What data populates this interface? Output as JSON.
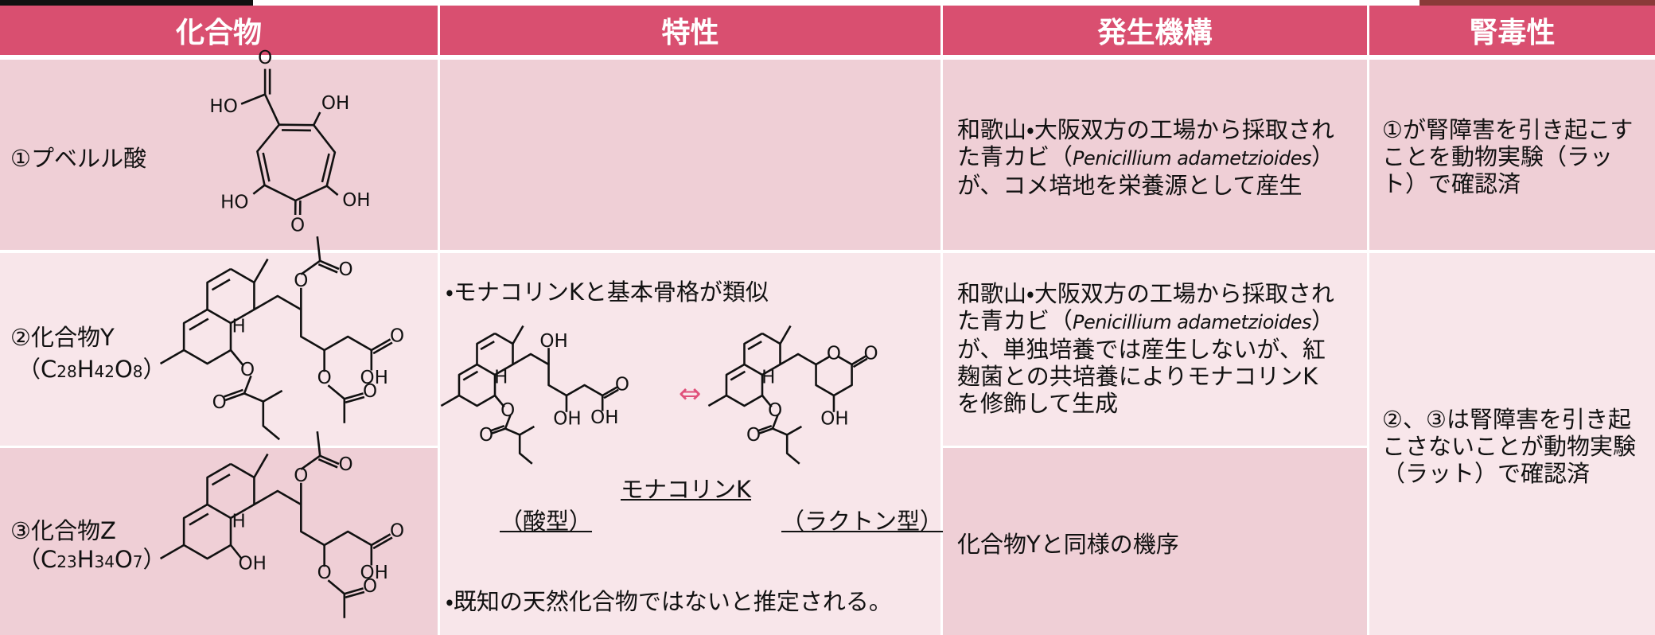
{
  "header": {
    "columns": [
      "化合物",
      "特性",
      "発生機構",
      "腎毒性"
    ]
  },
  "rows": [
    {
      "compound": "①プベルル酸",
      "mechanism": [
        "和歌山・大阪双方の工場から採取された青カビ（",
        "Penicillium adametzioides",
        "）が、コメ培地を栄養源として産生"
      ],
      "toxicity": "①が腎障害を引き起こすことを動物実験（ラット）で確認済"
    },
    {
      "compound": "②化合物Y",
      "formula": [
        "（C",
        "28",
        "H",
        "42",
        "O",
        "8",
        "）"
      ],
      "mechanism": [
        "和歌山・大阪双方の工場から採取された青カビ（",
        "Penicillium adametzioides",
        "）が、単独培養では産生しないが、紅麹菌との共培養によりモナコリンKを修飾して生成"
      ],
      "toxicity": "②、③は腎障害を引き起こさないことが動物実験（ラット）で確認済"
    },
    {
      "compound": "③化合物Z",
      "formula": [
        "（C",
        "23",
        "H",
        "34",
        "O",
        "7",
        "）"
      ],
      "mechanism": [
        "化合物Yと同様の機序"
      ]
    }
  ],
  "properties": {
    "bullet1": "・モナコリンKと基本骨格が類似",
    "arrow": "⇔",
    "caption": "モナコリンK",
    "acid_form": "（酸型）",
    "lactone_form": "（ラクトン型）",
    "bullet2": "・既知の天然化合物ではないと推定される。"
  },
  "structures": {
    "puberulic": [
      "O",
      "HO",
      "OH",
      "OH",
      "HO",
      "O"
    ],
    "compound_y": [
      "O",
      "O",
      "H",
      "O",
      "O",
      "O",
      "OH",
      "O",
      "O"
    ],
    "compound_z": [
      "O",
      "O",
      "H",
      "OH",
      "O",
      "OH",
      "O",
      "O"
    ],
    "monacolin_acid": [
      "OH",
      "H",
      "O",
      "O",
      "OH",
      "O",
      "OH"
    ],
    "monacolin_lactone": [
      "O",
      "O",
      "H",
      "O",
      "O",
      "OH"
    ]
  }
}
